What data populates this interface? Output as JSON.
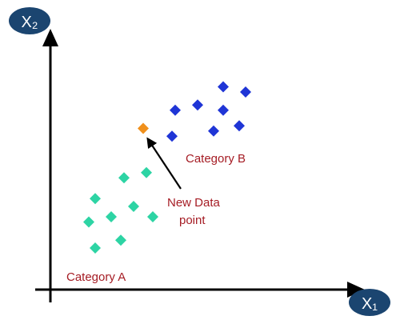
{
  "chart_data": {
    "type": "scatter",
    "title": "",
    "xlabel": "X₁",
    "ylabel": "X₂",
    "xlim": [
      0,
      10
    ],
    "ylim": [
      0,
      10
    ],
    "grid": false,
    "series": [
      {
        "name": "Category A",
        "color": "#2dd4a4",
        "marker": "diamond",
        "points": [
          {
            "x": 1.4,
            "y": 1.6
          },
          {
            "x": 2.2,
            "y": 1.9
          },
          {
            "x": 1.2,
            "y": 2.6
          },
          {
            "x": 1.9,
            "y": 2.8
          },
          {
            "x": 2.6,
            "y": 3.2
          },
          {
            "x": 3.2,
            "y": 2.8
          },
          {
            "x": 1.4,
            "y": 3.5
          },
          {
            "x": 2.3,
            "y": 4.3
          },
          {
            "x": 3.0,
            "y": 4.5
          }
        ]
      },
      {
        "name": "Category B",
        "color": "#1f35d6",
        "marker": "diamond",
        "points": [
          {
            "x": 3.8,
            "y": 5.9
          },
          {
            "x": 5.1,
            "y": 6.1
          },
          {
            "x": 5.9,
            "y": 6.3
          },
          {
            "x": 3.9,
            "y": 6.9
          },
          {
            "x": 4.6,
            "y": 7.1
          },
          {
            "x": 5.4,
            "y": 6.9
          },
          {
            "x": 6.1,
            "y": 7.6
          },
          {
            "x": 5.4,
            "y": 7.8
          }
        ]
      },
      {
        "name": "New Data point",
        "color": "#f0901c",
        "marker": "diamond",
        "points": [
          {
            "x": 2.9,
            "y": 6.2
          }
        ]
      }
    ],
    "labels": {
      "category_a": "Category A",
      "category_b": "Category B",
      "new_point_line1": "New Data",
      "new_point_line2": "point"
    }
  },
  "colors": {
    "axis": "#000000",
    "label_badge": "#1b4570",
    "label_text": "#ffffff",
    "category_text": "#a51c24",
    "arrow": "#000000"
  }
}
